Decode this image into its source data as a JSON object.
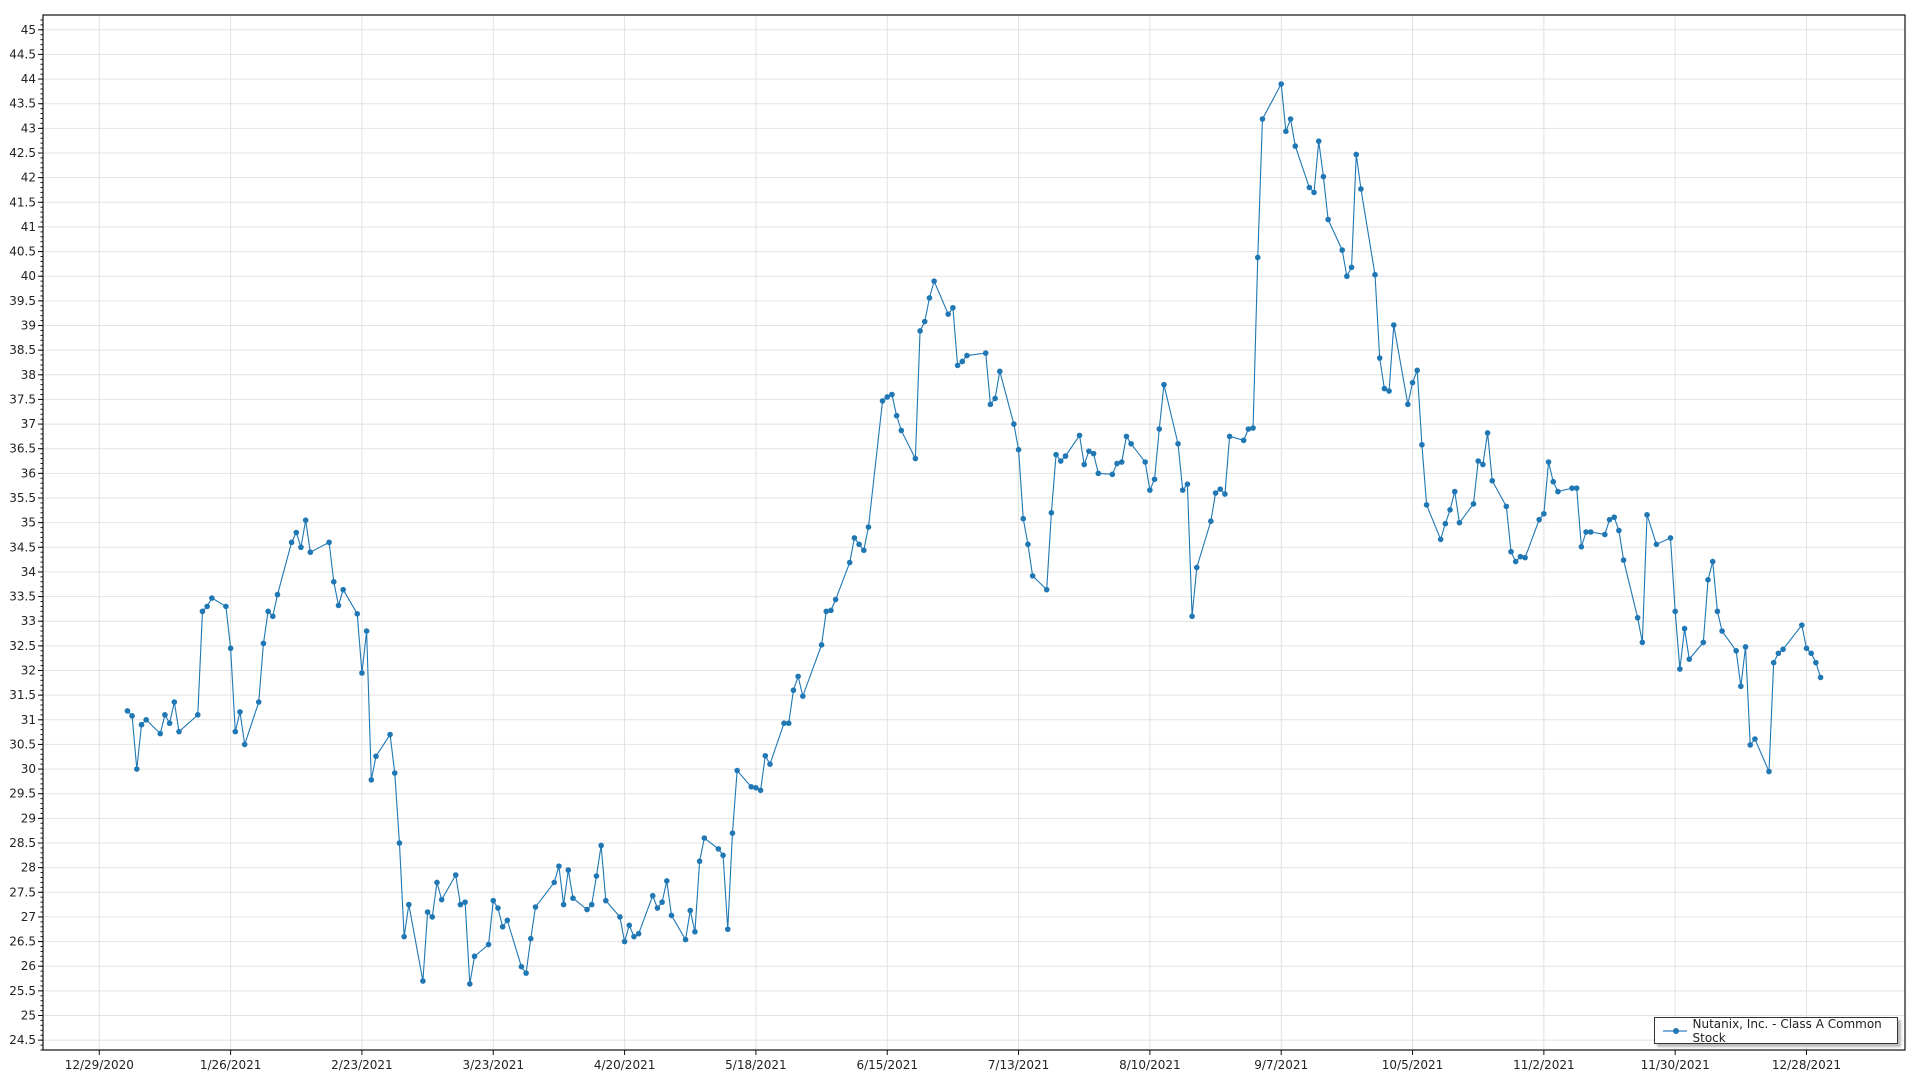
{
  "chart_data": {
    "type": "line",
    "title": "",
    "xlabel": "",
    "ylabel": "",
    "xlim": [
      "2020-12-17",
      "2022-01-18"
    ],
    "ylim": [
      24.3,
      45.3
    ],
    "grid": true,
    "legend_position": "bottom-right",
    "line_color": "#1f77b4",
    "y_ticks": [
      "24.5",
      "25",
      "25.5",
      "26",
      "26.5",
      "27",
      "27.5",
      "28",
      "28.5",
      "29",
      "29.5",
      "30",
      "30.5",
      "31",
      "31.5",
      "32",
      "32.5",
      "33",
      "33.5",
      "34",
      "34.5",
      "35",
      "35.5",
      "36",
      "36.5",
      "37",
      "37.5",
      "38",
      "38.5",
      "39",
      "39.5",
      "40",
      "40.5",
      "41",
      "41.5",
      "42",
      "42.5",
      "43",
      "43.5",
      "44",
      "44.5",
      "45"
    ],
    "x_ticks": [
      "12/29/2020",
      "1/26/2021",
      "2/23/2021",
      "3/23/2021",
      "4/20/2021",
      "5/18/2021",
      "6/15/2021",
      "7/13/2021",
      "8/10/2021",
      "9/7/2021",
      "10/5/2021",
      "11/2/2021",
      "11/30/2021",
      "12/28/2021"
    ],
    "series": [
      {
        "name": "Nutanix, Inc. - Class A Common Stock",
        "points": [
          [
            "2021-01-04",
            31.18
          ],
          [
            "2021-01-05",
            31.08
          ],
          [
            "2021-01-06",
            30.0
          ],
          [
            "2021-01-07",
            30.9
          ],
          [
            "2021-01-08",
            31.0
          ],
          [
            "2021-01-11",
            30.72
          ],
          [
            "2021-01-12",
            31.1
          ],
          [
            "2021-01-13",
            30.93
          ],
          [
            "2021-01-14",
            31.36
          ],
          [
            "2021-01-15",
            30.76
          ],
          [
            "2021-01-19",
            31.1
          ],
          [
            "2021-01-20",
            33.2
          ],
          [
            "2021-01-21",
            33.3
          ],
          [
            "2021-01-22",
            33.47
          ],
          [
            "2021-01-25",
            33.3
          ],
          [
            "2021-01-26",
            32.45
          ],
          [
            "2021-01-27",
            30.76
          ],
          [
            "2021-01-28",
            31.16
          ],
          [
            "2021-01-29",
            30.5
          ],
          [
            "2021-02-01",
            31.36
          ],
          [
            "2021-02-02",
            32.55
          ],
          [
            "2021-02-03",
            33.2
          ],
          [
            "2021-02-04",
            33.1
          ],
          [
            "2021-02-05",
            33.54
          ],
          [
            "2021-02-08",
            34.6
          ],
          [
            "2021-02-09",
            34.8
          ],
          [
            "2021-02-10",
            34.5
          ],
          [
            "2021-02-11",
            35.05
          ],
          [
            "2021-02-12",
            34.4
          ],
          [
            "2021-02-16",
            34.6
          ],
          [
            "2021-02-17",
            33.8
          ],
          [
            "2021-02-18",
            33.32
          ],
          [
            "2021-02-19",
            33.64
          ],
          [
            "2021-02-22",
            33.15
          ],
          [
            "2021-02-23",
            31.95
          ],
          [
            "2021-02-24",
            32.8
          ],
          [
            "2021-02-25",
            29.78
          ],
          [
            "2021-02-26",
            30.26
          ],
          [
            "2021-03-01",
            30.7
          ],
          [
            "2021-03-02",
            29.92
          ],
          [
            "2021-03-03",
            28.5
          ],
          [
            "2021-03-04",
            26.6
          ],
          [
            "2021-03-05",
            27.25
          ],
          [
            "2021-03-08",
            25.7
          ],
          [
            "2021-03-09",
            27.1
          ],
          [
            "2021-03-10",
            27.0
          ],
          [
            "2021-03-11",
            27.7
          ],
          [
            "2021-03-12",
            27.35
          ],
          [
            "2021-03-15",
            27.85
          ],
          [
            "2021-03-16",
            27.25
          ],
          [
            "2021-03-17",
            27.3
          ],
          [
            "2021-03-18",
            25.64
          ],
          [
            "2021-03-19",
            26.2
          ],
          [
            "2021-03-22",
            26.44
          ],
          [
            "2021-03-23",
            27.33
          ],
          [
            "2021-03-24",
            27.18
          ],
          [
            "2021-03-25",
            26.8
          ],
          [
            "2021-03-26",
            26.93
          ],
          [
            "2021-03-29",
            25.99
          ],
          [
            "2021-03-30",
            25.86
          ],
          [
            "2021-03-31",
            26.56
          ],
          [
            "2021-04-01",
            27.2
          ],
          [
            "2021-04-05",
            27.7
          ],
          [
            "2021-04-06",
            28.03
          ],
          [
            "2021-04-07",
            27.25
          ],
          [
            "2021-04-08",
            27.95
          ],
          [
            "2021-04-09",
            27.38
          ],
          [
            "2021-04-12",
            27.15
          ],
          [
            "2021-04-13",
            27.25
          ],
          [
            "2021-04-14",
            27.83
          ],
          [
            "2021-04-15",
            28.45
          ],
          [
            "2021-04-16",
            27.33
          ],
          [
            "2021-04-19",
            27.0
          ],
          [
            "2021-04-20",
            26.5
          ],
          [
            "2021-04-21",
            26.83
          ],
          [
            "2021-04-22",
            26.6
          ],
          [
            "2021-04-23",
            26.66
          ],
          [
            "2021-04-26",
            27.43
          ],
          [
            "2021-04-27",
            27.18
          ],
          [
            "2021-04-28",
            27.3
          ],
          [
            "2021-04-29",
            27.73
          ],
          [
            "2021-04-30",
            27.03
          ],
          [
            "2021-05-03",
            26.54
          ],
          [
            "2021-05-04",
            27.13
          ],
          [
            "2021-05-05",
            26.7
          ],
          [
            "2021-05-06",
            28.13
          ],
          [
            "2021-05-07",
            28.6
          ],
          [
            "2021-05-10",
            28.38
          ],
          [
            "2021-05-11",
            28.25
          ],
          [
            "2021-05-12",
            26.75
          ],
          [
            "2021-05-13",
            28.7
          ],
          [
            "2021-05-14",
            29.97
          ],
          [
            "2021-05-17",
            29.64
          ],
          [
            "2021-05-18",
            29.62
          ],
          [
            "2021-05-19",
            29.57
          ],
          [
            "2021-05-20",
            30.27
          ],
          [
            "2021-05-21",
            30.1
          ],
          [
            "2021-05-24",
            30.93
          ],
          [
            "2021-05-25",
            30.93
          ],
          [
            "2021-05-26",
            31.6
          ],
          [
            "2021-05-27",
            31.88
          ],
          [
            "2021-05-28",
            31.48
          ],
          [
            "2021-06-01",
            32.52
          ],
          [
            "2021-06-02",
            33.2
          ],
          [
            "2021-06-03",
            33.22
          ],
          [
            "2021-06-04",
            33.44
          ],
          [
            "2021-06-07",
            34.19
          ],
          [
            "2021-06-08",
            34.69
          ],
          [
            "2021-06-09",
            34.56
          ],
          [
            "2021-06-10",
            34.44
          ],
          [
            "2021-06-11",
            34.91
          ],
          [
            "2021-06-14",
            37.47
          ],
          [
            "2021-06-15",
            37.55
          ],
          [
            "2021-06-16",
            37.6
          ],
          [
            "2021-06-17",
            37.17
          ],
          [
            "2021-06-18",
            36.87
          ],
          [
            "2021-06-21",
            36.3
          ],
          [
            "2021-06-22",
            38.89
          ],
          [
            "2021-06-23",
            39.08
          ],
          [
            "2021-06-24",
            39.56
          ],
          [
            "2021-06-25",
            39.9
          ],
          [
            "2021-06-28",
            39.23
          ],
          [
            "2021-06-29",
            39.36
          ],
          [
            "2021-06-30",
            38.19
          ],
          [
            "2021-07-01",
            38.27
          ],
          [
            "2021-07-02",
            38.39
          ],
          [
            "2021-07-06",
            38.44
          ],
          [
            "2021-07-07",
            37.4
          ],
          [
            "2021-07-08",
            37.52
          ],
          [
            "2021-07-09",
            38.07
          ],
          [
            "2021-07-12",
            37.0
          ],
          [
            "2021-07-13",
            36.48
          ],
          [
            "2021-07-14",
            35.08
          ],
          [
            "2021-07-15",
            34.56
          ],
          [
            "2021-07-16",
            33.92
          ],
          [
            "2021-07-19",
            33.64
          ],
          [
            "2021-07-20",
            35.2
          ],
          [
            "2021-07-21",
            36.38
          ],
          [
            "2021-07-22",
            36.25
          ],
          [
            "2021-07-23",
            36.35
          ],
          [
            "2021-07-26",
            36.77
          ],
          [
            "2021-07-27",
            36.18
          ],
          [
            "2021-07-28",
            36.45
          ],
          [
            "2021-07-29",
            36.4
          ],
          [
            "2021-07-30",
            36.0
          ],
          [
            "2021-08-02",
            35.98
          ],
          [
            "2021-08-03",
            36.2
          ],
          [
            "2021-08-04",
            36.23
          ],
          [
            "2021-08-05",
            36.75
          ],
          [
            "2021-08-06",
            36.6
          ],
          [
            "2021-08-09",
            36.23
          ],
          [
            "2021-08-10",
            35.66
          ],
          [
            "2021-08-11",
            35.88
          ],
          [
            "2021-08-12",
            36.9
          ],
          [
            "2021-08-13",
            37.8
          ],
          [
            "2021-08-16",
            36.6
          ],
          [
            "2021-08-17",
            35.66
          ],
          [
            "2021-08-18",
            35.78
          ],
          [
            "2021-08-19",
            33.1
          ],
          [
            "2021-08-20",
            34.09
          ],
          [
            "2021-08-23",
            35.03
          ],
          [
            "2021-08-24",
            35.6
          ],
          [
            "2021-08-25",
            35.68
          ],
          [
            "2021-08-26",
            35.58
          ],
          [
            "2021-08-27",
            36.75
          ],
          [
            "2021-08-30",
            36.67
          ],
          [
            "2021-08-31",
            36.9
          ],
          [
            "2021-09-01",
            36.92
          ],
          [
            "2021-09-02",
            40.38
          ],
          [
            "2021-09-03",
            43.19
          ],
          [
            "2021-09-07",
            43.9
          ],
          [
            "2021-09-08",
            42.94
          ],
          [
            "2021-09-09",
            43.19
          ],
          [
            "2021-09-10",
            42.64
          ],
          [
            "2021-09-13",
            41.8
          ],
          [
            "2021-09-14",
            41.7
          ],
          [
            "2021-09-15",
            42.74
          ],
          [
            "2021-09-16",
            42.02
          ],
          [
            "2021-09-17",
            41.15
          ],
          [
            "2021-09-20",
            40.53
          ],
          [
            "2021-09-21",
            40.0
          ],
          [
            "2021-09-22",
            40.18
          ],
          [
            "2021-09-23",
            42.47
          ],
          [
            "2021-09-24",
            41.77
          ],
          [
            "2021-09-27",
            40.03
          ],
          [
            "2021-09-28",
            38.34
          ],
          [
            "2021-09-29",
            37.72
          ],
          [
            "2021-09-30",
            37.67
          ],
          [
            "2021-10-01",
            39.01
          ],
          [
            "2021-10-04",
            37.4
          ],
          [
            "2021-10-05",
            37.84
          ],
          [
            "2021-10-06",
            38.09
          ],
          [
            "2021-10-07",
            36.58
          ],
          [
            "2021-10-08",
            35.36
          ],
          [
            "2021-10-11",
            34.66
          ],
          [
            "2021-10-12",
            34.98
          ],
          [
            "2021-10-13",
            35.26
          ],
          [
            "2021-10-14",
            35.63
          ],
          [
            "2021-10-15",
            35.0
          ],
          [
            "2021-10-18",
            35.38
          ],
          [
            "2021-10-19",
            36.25
          ],
          [
            "2021-10-20",
            36.18
          ],
          [
            "2021-10-21",
            36.82
          ],
          [
            "2021-10-22",
            35.85
          ],
          [
            "2021-10-25",
            35.33
          ],
          [
            "2021-10-26",
            34.41
          ],
          [
            "2021-10-27",
            34.21
          ],
          [
            "2021-10-28",
            34.31
          ],
          [
            "2021-10-29",
            34.29
          ],
          [
            "2021-11-01",
            35.06
          ],
          [
            "2021-11-02",
            35.18
          ],
          [
            "2021-11-03",
            36.23
          ],
          [
            "2021-11-04",
            35.83
          ],
          [
            "2021-11-05",
            35.63
          ],
          [
            "2021-11-08",
            35.7
          ],
          [
            "2021-11-09",
            35.7
          ],
          [
            "2021-11-10",
            34.51
          ],
          [
            "2021-11-11",
            34.81
          ],
          [
            "2021-11-12",
            34.81
          ],
          [
            "2021-11-15",
            34.76
          ],
          [
            "2021-11-16",
            35.06
          ],
          [
            "2021-11-17",
            35.11
          ],
          [
            "2021-11-18",
            34.84
          ],
          [
            "2021-11-19",
            34.24
          ],
          [
            "2021-11-22",
            33.07
          ],
          [
            "2021-11-23",
            32.57
          ],
          [
            "2021-11-24",
            35.16
          ],
          [
            "2021-11-26",
            34.56
          ],
          [
            "2021-11-29",
            34.69
          ],
          [
            "2021-11-30",
            33.2
          ],
          [
            "2021-12-01",
            32.03
          ],
          [
            "2021-12-02",
            32.85
          ],
          [
            "2021-12-03",
            32.23
          ],
          [
            "2021-12-06",
            32.57
          ],
          [
            "2021-12-07",
            33.84
          ],
          [
            "2021-12-08",
            34.21
          ],
          [
            "2021-12-09",
            33.2
          ],
          [
            "2021-12-10",
            32.8
          ],
          [
            "2021-12-13",
            32.4
          ],
          [
            "2021-12-14",
            31.68
          ],
          [
            "2021-12-15",
            32.48
          ],
          [
            "2021-12-16",
            30.49
          ],
          [
            "2021-12-17",
            30.61
          ],
          [
            "2021-12-20",
            29.95
          ],
          [
            "2021-12-21",
            32.16
          ],
          [
            "2021-12-22",
            32.35
          ],
          [
            "2021-12-23",
            32.43
          ],
          [
            "2021-12-27",
            32.92
          ],
          [
            "2021-12-28",
            32.45
          ],
          [
            "2021-12-29",
            32.35
          ],
          [
            "2021-12-30",
            32.16
          ],
          [
            "2021-12-31",
            31.86
          ]
        ]
      }
    ]
  },
  "legend": {
    "label": "Nutanix, Inc. - Class A Common Stock"
  }
}
